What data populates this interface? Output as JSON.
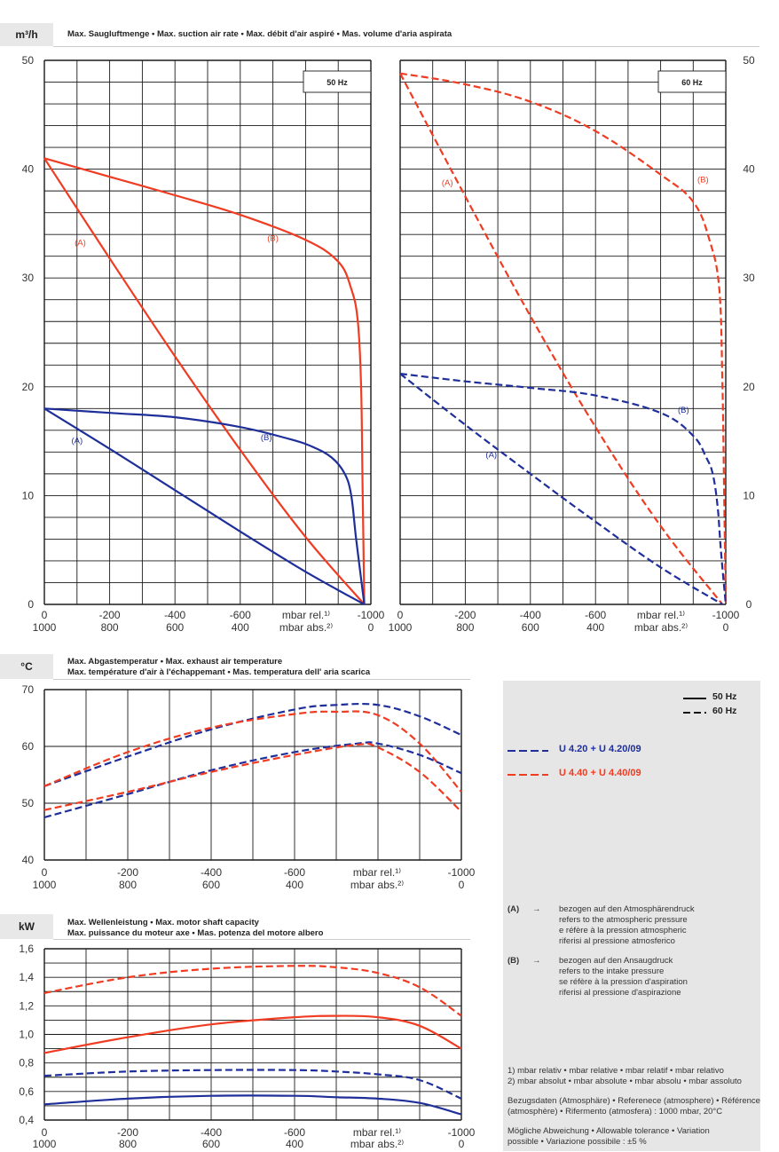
{
  "header": {
    "unit_flow": "m³/h",
    "flow_title": "Max. Saugluftmenge  •  Max. suction air rate  •  Max. débit d'air aspiré  •  Mas. volume d'aria aspirata",
    "unit_temp": "°C",
    "temp_title_1": "Max. Abgastemperatur  •  Max. exhaust air temperature",
    "temp_title_2": "Max. température d'air à l'échappemant  •  Mas. temperatura dell' aria scarica",
    "unit_power": "kW",
    "power_title_1": "Max. Wellenleistung  •  Max. motor shaft capacity",
    "power_title_2": "Max. puissance du moteur axe  •  Mas. potenza del motore albero"
  },
  "colors": {
    "blue": "#1f2f9a",
    "red": "#f03c22",
    "grid": "#1a1a1a"
  },
  "legend": {
    "solid_label": "50 Hz",
    "dashed_label": "60 Hz",
    "blue_series": "U 4.20 + U 4.20/09",
    "red_series": "U 4.40 + U 4.40/09"
  },
  "notes": {
    "a_tag": "(A)",
    "a_arrow": "→",
    "a_lines": [
      "bezogen auf den Atmosphärendruck",
      "refers to the atmospheric pressure",
      "e réfère à la pression atmospheric",
      "riferisi al pressione atmosferico"
    ],
    "b_tag": "(B)",
    "b_arrow": "→",
    "b_lines": [
      "bezogen auf den Ansaugdruck",
      "refers to the intake pressure",
      "se réfère à la pression d'aspiration",
      "riferisi al pressione d'aspirazione"
    ],
    "footnote_1": "1) mbar relativ • mbar relative • mbar relatif • mbar relativo",
    "footnote_2": "2) mbar absolut • mbar absolute • mbar absolu • mbar assoluto",
    "reference_1": "Bezugsdaten (Atmosphäre) • Referenece (atmosphere) • Référence",
    "reference_2": "(atmosphère) • Rifermento (atmosfera) :  1000 mbar, 20°C",
    "tolerance_1": "Mögliche Abweichung • Allowable tolerance • Variation",
    "tolerance_2": "possible • Variazione possibile :  ±5 %"
  },
  "chart_data": [
    {
      "id": "flow50",
      "type": "line",
      "title": "50 Hz",
      "frequency": "50 Hz",
      "xlabel_rel": "mbar rel.¹⁾",
      "xlabel_abs": "mbar abs.²⁾",
      "xticks_rel": [
        "0",
        "-200",
        "-400",
        "-600",
        "",
        "-1000"
      ],
      "xticks_abs": [
        "1000",
        "800",
        "600",
        "400",
        "",
        "0"
      ],
      "xlim": [
        0,
        -1000
      ],
      "ylim": [
        0,
        50
      ],
      "yticks": [
        "0",
        "10",
        "20",
        "30",
        "40",
        "50"
      ],
      "series": [
        {
          "name": "U 4.40 + U 4.40/09 (A)",
          "color": "red",
          "dash": false,
          "label": "(A)",
          "label_at": [
            -110,
            33
          ],
          "x": [
            0,
            -200,
            -400,
            -600,
            -800,
            -980
          ],
          "y": [
            41,
            31.8,
            22.8,
            14.2,
            6.2,
            0
          ]
        },
        {
          "name": "U 4.40 + U 4.40/09 (B)",
          "color": "red",
          "dash": false,
          "label": "(B)",
          "label_at": [
            -700,
            33.4
          ],
          "x": [
            0,
            -200,
            -400,
            -600,
            -800,
            -900,
            -940,
            -960,
            -970,
            -975,
            -980
          ],
          "y": [
            41,
            39.3,
            37.6,
            35.8,
            33.5,
            31.5,
            29,
            26,
            20,
            10,
            0
          ]
        },
        {
          "name": "U 4.20 + U 4.20/09 (A)",
          "color": "blue",
          "dash": false,
          "label": "(A)",
          "label_at": [
            -100,
            14.8
          ],
          "x": [
            0,
            -200,
            -400,
            -600,
            -800,
            -980
          ],
          "y": [
            18,
            14.3,
            10.5,
            6.7,
            3.0,
            0
          ]
        },
        {
          "name": "U 4.20 + U 4.20/09 (B)",
          "color": "blue",
          "dash": false,
          "label": "(B)",
          "label_at": [
            -680,
            15.1
          ],
          "x": [
            0,
            -200,
            -400,
            -600,
            -750,
            -820,
            -880,
            -920,
            -940,
            -955,
            -980
          ],
          "y": [
            18,
            17.6,
            17.2,
            16.3,
            15.2,
            14.5,
            13.5,
            12,
            10,
            6,
            0
          ]
        }
      ]
    },
    {
      "id": "flow60",
      "type": "line",
      "title": "60 Hz",
      "frequency": "60 Hz",
      "xlabel_rel": "mbar rel.¹⁾",
      "xlabel_abs": "mbar abs.²⁾",
      "xticks_rel": [
        "0",
        "-200",
        "-400",
        "-600",
        "",
        "-1000"
      ],
      "xticks_abs": [
        "1000",
        "800",
        "600",
        "400",
        "",
        "0"
      ],
      "xlim": [
        0,
        -1000
      ],
      "ylim": [
        0,
        50
      ],
      "yticks": [
        "0",
        "10",
        "20",
        "30",
        "40",
        "50"
      ],
      "series": [
        {
          "name": "U 4.40 + U 4.40/09 (A)",
          "color": "red",
          "dash": true,
          "label": "(A)",
          "label_at": [
            -145,
            38.5
          ],
          "x": [
            0,
            -200,
            -400,
            -600,
            -800,
            -990
          ],
          "y": [
            48.8,
            37.5,
            26.5,
            16.3,
            7.2,
            0
          ]
        },
        {
          "name": "U 4.40 + U 4.40/09 (B)",
          "color": "red",
          "dash": true,
          "label": "(B)",
          "label_at": [
            -930,
            38.8
          ],
          "x": [
            0,
            -200,
            -400,
            -600,
            -800,
            -900,
            -950,
            -980,
            -990,
            -995,
            -1000
          ],
          "y": [
            48.8,
            47.8,
            46.2,
            43.5,
            39.5,
            37,
            33.5,
            29,
            20,
            10,
            0
          ]
        },
        {
          "name": "U 4.20 + U 4.20/09 (A)",
          "color": "blue",
          "dash": true,
          "label": "(A)",
          "label_at": [
            -280,
            13.5
          ],
          "x": [
            0,
            -200,
            -400,
            -600,
            -800,
            -990
          ],
          "y": [
            21.2,
            16.5,
            12,
            7.6,
            3.4,
            0
          ]
        },
        {
          "name": "U 4.20 + U 4.20/09 (B)",
          "color": "blue",
          "dash": true,
          "label": "(B)",
          "label_at": [
            -870,
            17.6
          ],
          "x": [
            0,
            -200,
            -400,
            -600,
            -800,
            -900,
            -940,
            -960,
            -975,
            -985,
            -1000
          ],
          "y": [
            21.2,
            20.5,
            19.9,
            19.2,
            17.6,
            15.5,
            13.5,
            12,
            9,
            5,
            0
          ]
        }
      ]
    },
    {
      "id": "temp",
      "type": "line",
      "title": "Max. exhaust air temperature",
      "xlabel_rel": "mbar rel.¹⁾",
      "xlabel_abs": "mbar abs.²⁾",
      "xticks_rel": [
        "0",
        "-200",
        "-400",
        "-600",
        "",
        "-1000"
      ],
      "xticks_abs": [
        "1000",
        "800",
        "600",
        "400",
        "",
        "0"
      ],
      "xlim": [
        0,
        -1000
      ],
      "ylim": [
        40,
        70
      ],
      "yticks": [
        "40",
        "50",
        "60",
        "70"
      ],
      "series": [
        {
          "name": "U 4.20 60 Hz upper",
          "color": "blue",
          "dash": true,
          "x": [
            0,
            -200,
            -400,
            -600,
            -700,
            -800,
            -900,
            -1000
          ],
          "y": [
            53,
            58.2,
            63,
            66.5,
            67.3,
            67.3,
            65.3,
            62
          ]
        },
        {
          "name": "U 4.40 60 Hz upper",
          "color": "red",
          "dash": true,
          "x": [
            0,
            -200,
            -400,
            -600,
            -700,
            -800,
            -900,
            -1000
          ],
          "y": [
            53,
            59,
            63.3,
            65.7,
            66.1,
            65.5,
            60.5,
            52
          ]
        },
        {
          "name": "U 4.20 60 Hz lower",
          "color": "blue",
          "dash": true,
          "x": [
            0,
            -200,
            -400,
            -600,
            -750,
            -800,
            -900,
            -1000
          ],
          "y": [
            47.5,
            51.6,
            55.8,
            59,
            60.5,
            60.5,
            58.5,
            55.3
          ]
        },
        {
          "name": "U 4.40 60 Hz lower",
          "color": "red",
          "dash": true,
          "x": [
            0,
            -200,
            -400,
            -600,
            -750,
            -800,
            -900,
            -1000
          ],
          "y": [
            48.8,
            52,
            55.5,
            58.5,
            60.3,
            59.8,
            55.5,
            48.5
          ]
        }
      ]
    },
    {
      "id": "power",
      "type": "line",
      "title": "Max. motor shaft capacity",
      "xlabel_rel": "mbar rel.¹⁾",
      "xlabel_abs": "mbar abs.²⁾",
      "xticks_rel": [
        "0",
        "-200",
        "-400",
        "-600",
        "",
        "-1000"
      ],
      "xticks_abs": [
        "1000",
        "800",
        "600",
        "400",
        "",
        "0"
      ],
      "xlim": [
        0,
        -1000
      ],
      "ylim": [
        0.4,
        1.6
      ],
      "yticks": [
        "0,4",
        "0,6",
        "0,8",
        "1,0",
        "1,2",
        "1,4",
        "1,6"
      ],
      "series": [
        {
          "name": "U 4.40 60 Hz",
          "color": "red",
          "dash": true,
          "x": [
            0,
            -200,
            -400,
            -600,
            -700,
            -800,
            -900,
            -1000
          ],
          "y": [
            1.29,
            1.4,
            1.46,
            1.48,
            1.47,
            1.43,
            1.33,
            1.13
          ]
        },
        {
          "name": "U 4.40 50 Hz",
          "color": "red",
          "dash": false,
          "x": [
            0,
            -200,
            -400,
            -600,
            -700,
            -800,
            -900,
            -1000
          ],
          "y": [
            0.87,
            0.98,
            1.07,
            1.12,
            1.13,
            1.12,
            1.06,
            0.9
          ]
        },
        {
          "name": "U 4.20 60 Hz",
          "color": "blue",
          "dash": true,
          "x": [
            0,
            -200,
            -400,
            -600,
            -700,
            -800,
            -900,
            -1000
          ],
          "y": [
            0.71,
            0.74,
            0.75,
            0.75,
            0.74,
            0.72,
            0.68,
            0.55
          ]
        },
        {
          "name": "U 4.20 50 Hz",
          "color": "blue",
          "dash": false,
          "x": [
            0,
            -200,
            -400,
            -600,
            -700,
            -800,
            -900,
            -1000
          ],
          "y": [
            0.51,
            0.55,
            0.57,
            0.57,
            0.56,
            0.55,
            0.52,
            0.44
          ]
        }
      ]
    }
  ]
}
